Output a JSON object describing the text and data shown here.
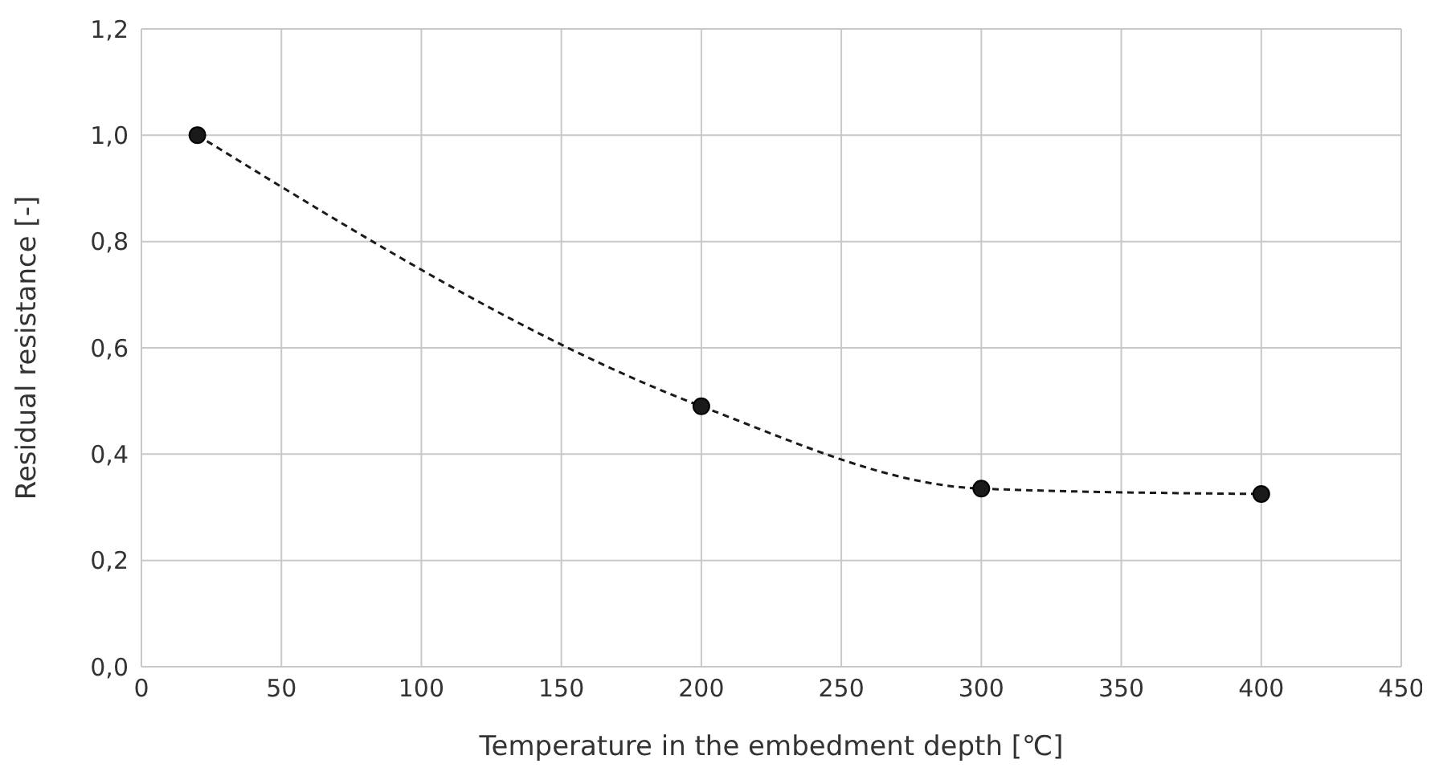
{
  "chart_data": {
    "type": "line",
    "xlabel": "Temperature in the embedment depth   [℃]",
    "ylabel": "Residual resistance [-]",
    "x": [
      20,
      200,
      300,
      400
    ],
    "series": [
      {
        "color": "#1a1a1a",
        "values": [
          1.0,
          0.49,
          0.335,
          0.325
        ]
      }
    ],
    "xlim": [
      0,
      450
    ],
    "xticks": [
      0,
      50,
      100,
      150,
      200,
      250,
      300,
      350,
      400,
      450
    ],
    "ylim": [
      0,
      1.2
    ],
    "yticks": [
      {
        "value": 0,
        "label": "0,0"
      },
      {
        "value": 0.2,
        "label": "0,2"
      },
      {
        "value": 0.4,
        "label": "0,4"
      },
      {
        "value": 0.6,
        "label": "0,6"
      },
      {
        "value": 0.8,
        "label": "0,8"
      },
      {
        "value": 1.0,
        "label": "1,0"
      },
      {
        "value": 1.2,
        "label": "1,2"
      }
    ],
    "grid": true,
    "marker": "circle",
    "line_style": "dashed",
    "legend": false
  }
}
